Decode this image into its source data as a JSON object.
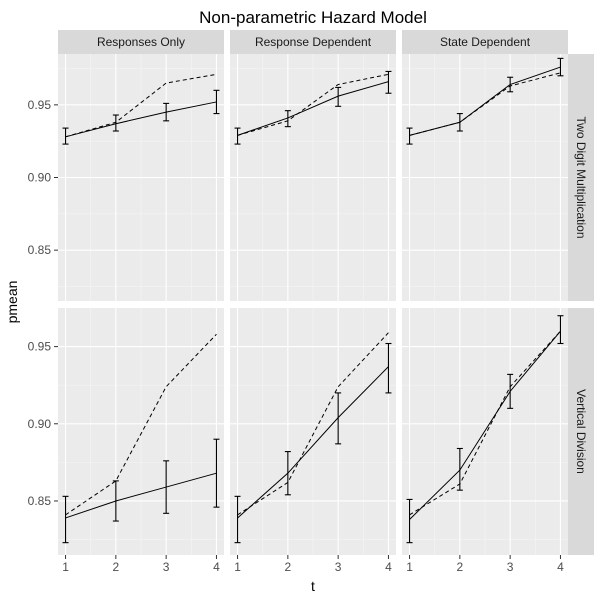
{
  "chart_data": {
    "type": "line",
    "title": "Non-parametric Hazard Model",
    "xlabel": "t",
    "ylabel": "pmean",
    "x": [
      1,
      2,
      3,
      4
    ],
    "x_ticks": [
      1,
      2,
      3,
      4
    ],
    "columns": [
      "Responses Only",
      "Response Dependent",
      "State Dependent"
    ],
    "rows": [
      {
        "label": "Two Digit Multiplication",
        "ylim": [
          0.815,
          0.985
        ],
        "y_ticks": [
          0.85,
          0.9,
          0.95
        ],
        "y_tick_labels": [
          "0.85",
          "0.90",
          "0.95"
        ],
        "panels": [
          {
            "column": "Responses Only",
            "solid": [
              0.928,
              0.937,
              0.945,
              0.952
            ],
            "err_low": [
              0.923,
              0.932,
              0.939,
              0.944
            ],
            "err_high": [
              0.934,
              0.943,
              0.951,
              0.96
            ],
            "dashed": [
              0.928,
              0.938,
              0.965,
              0.971
            ]
          },
          {
            "column": "Response Dependent",
            "solid": [
              0.929,
              0.941,
              0.956,
              0.966
            ],
            "err_low": [
              0.923,
              0.935,
              0.949,
              0.958
            ],
            "err_high": [
              0.934,
              0.946,
              0.962,
              0.973
            ],
            "dashed": [
              0.929,
              0.939,
              0.964,
              0.971
            ]
          },
          {
            "column": "State Dependent",
            "solid": [
              0.929,
              0.938,
              0.964,
              0.976
            ],
            "err_low": [
              0.923,
              0.932,
              0.959,
              0.97
            ],
            "err_high": [
              0.934,
              0.944,
              0.969,
              0.982
            ],
            "dashed": [
              0.929,
              0.938,
              0.963,
              0.972
            ]
          }
        ]
      },
      {
        "label": "Vertical Division",
        "ylim": [
          0.815,
          0.975
        ],
        "y_ticks": [
          0.85,
          0.9,
          0.95
        ],
        "y_tick_labels": [
          "0.85",
          "0.90",
          "0.95"
        ],
        "panels": [
          {
            "column": "Responses Only",
            "solid": [
              0.839,
              0.85,
              0.859,
              0.868
            ],
            "err_low": [
              0.823,
              0.837,
              0.842,
              0.846
            ],
            "err_high": [
              0.853,
              0.863,
              0.876,
              0.89
            ],
            "dashed": [
              0.841,
              0.863,
              0.924,
              0.958
            ]
          },
          {
            "column": "Response Dependent",
            "solid": [
              0.839,
              0.868,
              0.904,
              0.937
            ],
            "err_low": [
              0.823,
              0.854,
              0.887,
              0.92
            ],
            "err_high": [
              0.853,
              0.882,
              0.92,
              0.952
            ],
            "dashed": [
              0.841,
              0.862,
              0.924,
              0.959
            ]
          },
          {
            "column": "State Dependent",
            "solid": [
              0.838,
              0.87,
              0.921,
              0.96
            ],
            "err_low": [
              0.823,
              0.857,
              0.91,
              0.952
            ],
            "err_high": [
              0.851,
              0.884,
              0.932,
              0.97
            ],
            "dashed": [
              0.841,
              0.861,
              0.924,
              0.96
            ]
          }
        ]
      }
    ],
    "grid": true,
    "legend": "none"
  }
}
